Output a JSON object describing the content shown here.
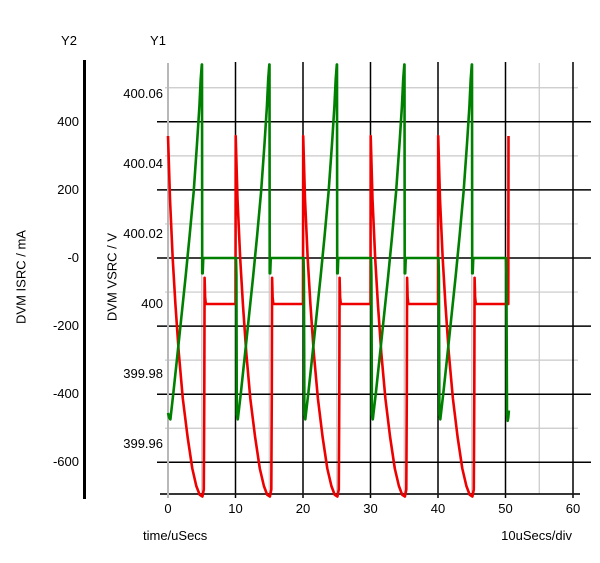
{
  "window": {
    "background": "#ffffff"
  },
  "labels": {
    "y2_axis_title": "Y2",
    "y1_axis_title": "Y1",
    "y2_unit_label": "DVM ISRC / mA",
    "y1_unit_label": "DVM VSRC / V",
    "x_axis_label": "time/uSecs",
    "x_scale_label": "10uSecs/div"
  },
  "chart_data": {
    "type": "line",
    "title": "",
    "grid": {
      "major_color": "#000000",
      "minor_color": "#c8c8c8",
      "on": true
    },
    "x_axis": {
      "label": "time/uSecs",
      "per_div": "10uSecs/div",
      "min": 0,
      "max": 60,
      "ticks": [
        0,
        10,
        20,
        30,
        40,
        50,
        60
      ],
      "tick_labels": [
        "0",
        "10",
        "20",
        "30",
        "40",
        "50",
        "60"
      ],
      "minor_ticks": [
        5,
        15,
        25,
        35,
        45,
        55
      ]
    },
    "y1_axis": {
      "title": "Y1",
      "label": "DVM VSRC / V",
      "ticks": [
        400.06,
        400.04,
        400.02,
        400.0,
        399.98,
        399.96
      ],
      "tick_labels": [
        "400.06",
        "400.04",
        "400.02",
        "400",
        "399.98",
        "399.96"
      ]
    },
    "y2_axis": {
      "title": "Y2",
      "label": "DVM ISRC / mA",
      "ticks": [
        400,
        200,
        0,
        -200,
        -400,
        -600
      ],
      "tick_labels": [
        "400",
        "200",
        "-0",
        "-200",
        "-400",
        "-600"
      ],
      "minor_ticks": [
        500,
        300,
        100,
        -100,
        -300,
        -500
      ]
    },
    "series": [
      {
        "name": "DVM ISRC",
        "units": "mA",
        "axis": "y2",
        "color": "#008000",
        "points": [
          [
            0,
            -455
          ],
          [
            0.2,
            -470
          ],
          [
            0.35,
            -474
          ],
          [
            0.8,
            -395
          ],
          [
            1.4,
            -285
          ],
          [
            2,
            -170
          ],
          [
            2.6,
            -55
          ],
          [
            3.2,
            65
          ],
          [
            3.8,
            195
          ],
          [
            4.3,
            335
          ],
          [
            4.65,
            445
          ],
          [
            4.85,
            525
          ],
          [
            5,
            568
          ],
          [
            5.04,
            568
          ],
          [
            5.06,
            -45
          ],
          [
            5.14,
            -45
          ],
          [
            5.22,
            -5
          ],
          [
            5.3,
            0
          ],
          [
            10.08,
            0
          ],
          [
            10.14,
            -50
          ],
          [
            10.2,
            -460
          ],
          [
            10.34,
            -474
          ],
          [
            10.8,
            -395
          ],
          [
            11.4,
            -285
          ],
          [
            12,
            -170
          ],
          [
            12.6,
            -55
          ],
          [
            13.2,
            65
          ],
          [
            13.8,
            195
          ],
          [
            14.3,
            335
          ],
          [
            14.65,
            445
          ],
          [
            14.85,
            525
          ],
          [
            15,
            568
          ],
          [
            15.04,
            568
          ],
          [
            15.06,
            -45
          ],
          [
            15.14,
            -45
          ],
          [
            15.22,
            -5
          ],
          [
            15.3,
            0
          ],
          [
            20.08,
            0
          ],
          [
            20.14,
            -50
          ],
          [
            20.2,
            -460
          ],
          [
            20.34,
            -474
          ],
          [
            20.8,
            -395
          ],
          [
            21.4,
            -285
          ],
          [
            22,
            -170
          ],
          [
            22.6,
            -55
          ],
          [
            23.2,
            65
          ],
          [
            23.8,
            195
          ],
          [
            24.3,
            335
          ],
          [
            24.65,
            445
          ],
          [
            24.85,
            525
          ],
          [
            25,
            568
          ],
          [
            25.04,
            568
          ],
          [
            25.06,
            -45
          ],
          [
            25.14,
            -45
          ],
          [
            25.22,
            -5
          ],
          [
            25.3,
            0
          ],
          [
            30.08,
            0
          ],
          [
            30.14,
            -50
          ],
          [
            30.2,
            -460
          ],
          [
            30.34,
            -474
          ],
          [
            30.8,
            -395
          ],
          [
            31.4,
            -285
          ],
          [
            32,
            -170
          ],
          [
            32.6,
            -55
          ],
          [
            33.2,
            65
          ],
          [
            33.8,
            195
          ],
          [
            34.3,
            335
          ],
          [
            34.65,
            445
          ],
          [
            34.85,
            525
          ],
          [
            35,
            568
          ],
          [
            35.04,
            568
          ],
          [
            35.06,
            -45
          ],
          [
            35.14,
            -45
          ],
          [
            35.22,
            -5
          ],
          [
            35.3,
            0
          ],
          [
            40.08,
            0
          ],
          [
            40.14,
            -50
          ],
          [
            40.2,
            -460
          ],
          [
            40.34,
            -474
          ],
          [
            40.8,
            -395
          ],
          [
            41.4,
            -285
          ],
          [
            42,
            -170
          ],
          [
            42.6,
            -55
          ],
          [
            43.2,
            65
          ],
          [
            43.8,
            195
          ],
          [
            44.3,
            335
          ],
          [
            44.65,
            445
          ],
          [
            44.85,
            525
          ],
          [
            45,
            568
          ],
          [
            45.04,
            568
          ],
          [
            45.06,
            -45
          ],
          [
            45.14,
            -45
          ],
          [
            45.22,
            -5
          ],
          [
            45.3,
            0
          ],
          [
            50.08,
            0
          ],
          [
            50.14,
            -50
          ],
          [
            50.22,
            -460
          ],
          [
            50.32,
            -478
          ],
          [
            50.42,
            -468
          ],
          [
            50.5,
            -448
          ]
        ]
      },
      {
        "name": "DVM VSRC",
        "units": "V",
        "axis": "y1",
        "color": "#ee0000",
        "points": [
          [
            0,
            400.048
          ],
          [
            0.3,
            400.03
          ],
          [
            0.7,
            400.013
          ],
          [
            1.1,
            400
          ],
          [
            1.6,
            399.986
          ],
          [
            2.2,
            399.973
          ],
          [
            2.9,
            399.962
          ],
          [
            3.6,
            399.953
          ],
          [
            4.2,
            399.948
          ],
          [
            4.7,
            399.9455
          ],
          [
            5.1,
            399.945
          ],
          [
            5.3,
            399.947
          ],
          [
            5.38,
            399.975
          ],
          [
            5.42,
            400.0075
          ],
          [
            5.5,
            400.002
          ],
          [
            5.6,
            400
          ],
          [
            10,
            400
          ],
          [
            10.03,
            400.048
          ],
          [
            10.3,
            400.03
          ],
          [
            10.7,
            400.013
          ],
          [
            11.1,
            400
          ],
          [
            11.6,
            399.986
          ],
          [
            12.2,
            399.973
          ],
          [
            12.9,
            399.962
          ],
          [
            13.6,
            399.953
          ],
          [
            14.2,
            399.948
          ],
          [
            14.7,
            399.9455
          ],
          [
            15.1,
            399.945
          ],
          [
            15.3,
            399.947
          ],
          [
            15.38,
            399.975
          ],
          [
            15.42,
            400.0075
          ],
          [
            15.5,
            400.002
          ],
          [
            15.6,
            400
          ],
          [
            20,
            400
          ],
          [
            20.03,
            400.048
          ],
          [
            20.3,
            400.03
          ],
          [
            20.7,
            400.013
          ],
          [
            21.1,
            400
          ],
          [
            21.6,
            399.986
          ],
          [
            22.2,
            399.973
          ],
          [
            22.9,
            399.962
          ],
          [
            23.6,
            399.953
          ],
          [
            24.2,
            399.948
          ],
          [
            24.7,
            399.9455
          ],
          [
            25.1,
            399.945
          ],
          [
            25.3,
            399.947
          ],
          [
            25.38,
            399.975
          ],
          [
            25.42,
            400.0075
          ],
          [
            25.5,
            400.002
          ],
          [
            25.6,
            400
          ],
          [
            30,
            400
          ],
          [
            30.03,
            400.048
          ],
          [
            30.3,
            400.03
          ],
          [
            30.7,
            400.013
          ],
          [
            31.1,
            400
          ],
          [
            31.6,
            399.986
          ],
          [
            32.2,
            399.973
          ],
          [
            32.9,
            399.962
          ],
          [
            33.6,
            399.953
          ],
          [
            34.2,
            399.948
          ],
          [
            34.7,
            399.9455
          ],
          [
            35.1,
            399.945
          ],
          [
            35.3,
            399.947
          ],
          [
            35.38,
            399.975
          ],
          [
            35.42,
            400.0075
          ],
          [
            35.5,
            400.002
          ],
          [
            35.6,
            400
          ],
          [
            40,
            400
          ],
          [
            40.03,
            400.048
          ],
          [
            40.3,
            400.03
          ],
          [
            40.7,
            400.013
          ],
          [
            41.1,
            400
          ],
          [
            41.6,
            399.986
          ],
          [
            42.2,
            399.973
          ],
          [
            42.9,
            399.962
          ],
          [
            43.6,
            399.953
          ],
          [
            44.2,
            399.948
          ],
          [
            44.7,
            399.9455
          ],
          [
            45.1,
            399.945
          ],
          [
            45.3,
            399.947
          ],
          [
            45.38,
            399.975
          ],
          [
            45.42,
            400.0075
          ],
          [
            45.5,
            400.002
          ],
          [
            45.6,
            400
          ],
          [
            50,
            400
          ],
          [
            50.42,
            400
          ],
          [
            50.45,
            400.048
          ]
        ]
      }
    ]
  }
}
